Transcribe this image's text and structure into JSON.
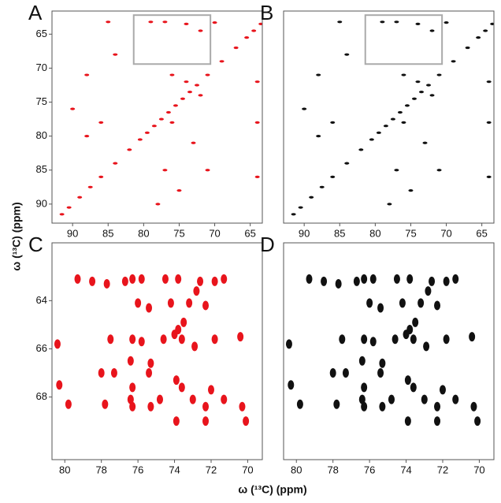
{
  "axis_labels": {
    "y": "ω (¹³C)   (ppm)",
    "x": "ω (¹³C)  (ppm)"
  },
  "chart_data": [
    {
      "type": "scatter",
      "title": "A",
      "color": "#e8141c",
      "xlim": [
        92.9,
        63.3
      ],
      "ylim": [
        61.6,
        92.8
      ],
      "xticks": [
        90,
        85,
        80,
        75,
        70,
        65
      ],
      "yticks": [
        65,
        70,
        75,
        80,
        85,
        90
      ],
      "inset_box": {
        "xlim": [
          81.4,
          70.6
        ],
        "ylim": [
          62.2,
          69.4
        ],
        "color": "#aaaaaa"
      },
      "x": [
        63.5,
        64.5,
        65.5,
        67,
        69,
        71,
        72.5,
        73.5,
        74.5,
        75.5,
        76.5,
        77.5,
        78.5,
        79.5,
        80.5,
        82,
        84,
        86,
        87.5,
        89,
        90.5,
        91.5,
        79,
        77,
        74,
        72,
        70,
        85,
        84,
        88,
        76,
        74,
        72,
        64,
        64,
        64,
        90,
        86,
        76,
        73,
        71,
        77,
        75,
        88,
        78
      ],
      "y": [
        63.5,
        64.5,
        65.5,
        67,
        69,
        71,
        72.5,
        73.5,
        74.5,
        75.5,
        76.5,
        77.5,
        78.5,
        79.5,
        80.5,
        82,
        84,
        86,
        87.5,
        89,
        90.5,
        91.5,
        63.2,
        63.2,
        63.5,
        64.5,
        63.3,
        63.2,
        68,
        71,
        71,
        72,
        74,
        72,
        78,
        86,
        76,
        78,
        78,
        81,
        85,
        85,
        88,
        80,
        90
      ]
    },
    {
      "type": "scatter",
      "title": "B",
      "color": "#111111",
      "xlim": [
        92.9,
        63.3
      ],
      "ylim": [
        61.6,
        92.8
      ],
      "xticks": [
        90,
        85,
        80,
        75,
        70,
        65
      ],
      "inset_box": {
        "xlim": [
          81.4,
          70.6
        ],
        "ylim": [
          62.2,
          69.4
        ],
        "color": "#aaaaaa"
      },
      "x": [
        63.5,
        64.5,
        65.5,
        67,
        69,
        71,
        72.5,
        73.5,
        74.5,
        75.5,
        76.5,
        77.5,
        78.5,
        79.5,
        80.5,
        82,
        84,
        86,
        87.5,
        89,
        90.5,
        91.5,
        79,
        77,
        74,
        72,
        70,
        85,
        84,
        88,
        76,
        74,
        72,
        64,
        64,
        64,
        90,
        86,
        76,
        73,
        71,
        77,
        75,
        88,
        78
      ],
      "y": [
        63.5,
        64.5,
        65.5,
        67,
        69,
        71,
        72.5,
        73.5,
        74.5,
        75.5,
        76.5,
        77.5,
        78.5,
        79.5,
        80.5,
        82,
        84,
        86,
        87.5,
        89,
        90.5,
        91.5,
        63.2,
        63.2,
        63.5,
        64.5,
        63.3,
        63.2,
        68,
        71,
        71,
        72,
        74,
        72,
        78,
        86,
        76,
        78,
        78,
        81,
        85,
        85,
        88,
        80,
        90
      ]
    },
    {
      "type": "scatter",
      "title": "C",
      "color": "#e8141c",
      "xlim": [
        80.7,
        69.2
      ],
      "ylim": [
        61.6,
        70.6
      ],
      "xticks": [
        80,
        78,
        76,
        74,
        72,
        70
      ],
      "yticks": [
        64,
        66,
        68
      ],
      "x": [
        79.3,
        78.5,
        77.7,
        76.7,
        76.3,
        75.8,
        74.5,
        73.8,
        72.6,
        71.8,
        71.3,
        72.8,
        76.0,
        75.4,
        74.2,
        73.2,
        72.3,
        73.5,
        73.8,
        74.0,
        77.5,
        76.3,
        75.8,
        74.6,
        73.6,
        72.9,
        71.8,
        70.4,
        80.4,
        76.4,
        75.3,
        78.0,
        77.3,
        75.4,
        73.9,
        80.3,
        76.3,
        73.6,
        72.0,
        76.4,
        74.8,
        73.0,
        71.3,
        76.3,
        75.3,
        72.3,
        70.3,
        79.8,
        73.9,
        72.3,
        70.1,
        77.8
      ],
      "y": [
        63.1,
        63.2,
        63.3,
        63.2,
        63.1,
        63.1,
        63.1,
        63.1,
        63.2,
        63.2,
        63.1,
        63.6,
        64.1,
        64.3,
        64.1,
        64.1,
        64.2,
        64.9,
        65.2,
        65.4,
        65.6,
        65.6,
        65.7,
        65.6,
        65.6,
        65.9,
        65.6,
        65.5,
        65.8,
        66.5,
        66.6,
        67.0,
        67.0,
        67.0,
        67.3,
        67.5,
        67.6,
        67.6,
        67.7,
        68.1,
        68.1,
        68.1,
        68.1,
        68.4,
        68.4,
        68.4,
        68.4,
        68.3,
        69.0,
        69.0,
        69.0,
        68.3
      ]
    },
    {
      "type": "scatter",
      "title": "D",
      "color": "#111111",
      "xlim": [
        80.7,
        69.2
      ],
      "ylim": [
        61.6,
        70.6
      ],
      "xticks": [
        80,
        78,
        76,
        74,
        72,
        70
      ],
      "x": [
        79.3,
        78.5,
        77.7,
        76.7,
        76.3,
        75.8,
        74.5,
        73.8,
        72.6,
        71.8,
        71.3,
        72.8,
        76.0,
        75.4,
        74.2,
        73.2,
        72.3,
        73.5,
        73.8,
        74.0,
        77.5,
        76.3,
        75.8,
        74.6,
        73.6,
        72.9,
        71.8,
        70.4,
        80.4,
        76.4,
        75.3,
        78.0,
        77.3,
        75.4,
        73.9,
        80.3,
        76.3,
        73.6,
        72.0,
        76.4,
        74.8,
        73.0,
        71.3,
        76.3,
        75.3,
        72.3,
        70.3,
        79.8,
        73.9,
        72.3,
        70.1,
        77.8
      ],
      "y": [
        63.1,
        63.2,
        63.3,
        63.2,
        63.1,
        63.1,
        63.1,
        63.1,
        63.2,
        63.2,
        63.1,
        63.6,
        64.1,
        64.3,
        64.1,
        64.1,
        64.2,
        64.9,
        65.2,
        65.4,
        65.6,
        65.6,
        65.7,
        65.6,
        65.6,
        65.9,
        65.6,
        65.5,
        65.8,
        66.5,
        66.6,
        67.0,
        67.0,
        67.0,
        67.3,
        67.5,
        67.6,
        67.6,
        67.7,
        68.1,
        68.1,
        68.1,
        68.1,
        68.4,
        68.4,
        68.4,
        68.4,
        68.3,
        69.0,
        69.0,
        69.0,
        68.3
      ]
    }
  ]
}
